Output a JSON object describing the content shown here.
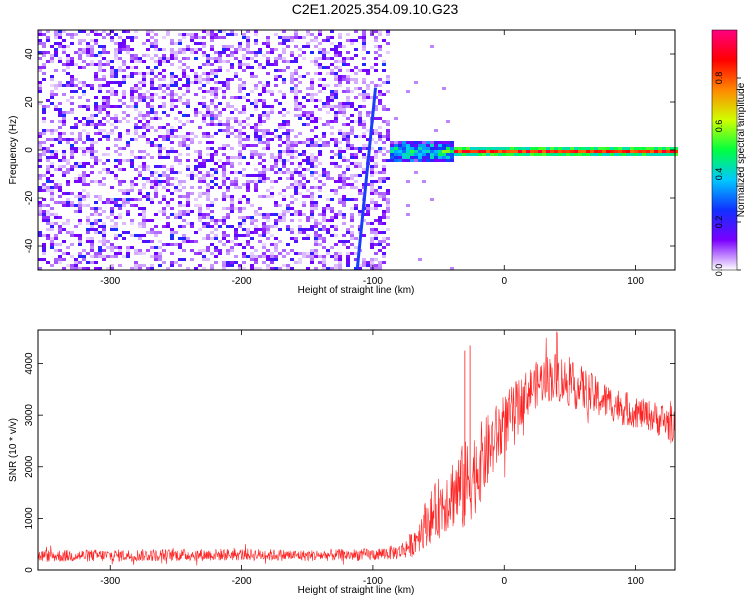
{
  "title": "C2E1.2025.354.09.10.G23",
  "chart_data": [
    {
      "type": "heatmap",
      "xlabel": "Height of straight line (km)",
      "ylabel": "Frequency (Hz)",
      "xlim": [
        -355,
        130
      ],
      "ylim": [
        -50,
        50
      ],
      "xticks": [
        -300,
        -200,
        -100,
        0,
        100
      ],
      "yticks": [
        -40,
        -20,
        0,
        20,
        40
      ],
      "colorbar": {
        "label": "Normalized spectral amplitude",
        "range": [
          0,
          1
        ],
        "ticks": [
          0.0,
          0.2,
          0.4,
          0.6,
          0.8
        ],
        "colors": [
          "#ffffff",
          "#7a00ff",
          "#1030ff",
          "#00c8ff",
          "#00ff40",
          "#d0ff00",
          "#ff8800",
          "#ff0000",
          "#ff0080"
        ]
      },
      "regions": [
        {
          "x_range": [
            -355,
            -90
          ],
          "description_amplitude": 0.1,
          "frequency_spread": [
            -50,
            50
          ]
        },
        {
          "x_range": [
            -90,
            -40
          ],
          "amplitude": 0.45,
          "frequency_spread": [
            -4,
            4
          ]
        },
        {
          "x_range": [
            -40,
            130
          ],
          "amplitude": 0.85,
          "frequency_spread": [
            -2,
            2
          ]
        }
      ],
      "streak": {
        "x_start": -112,
        "y_start": -50,
        "x_end": -98,
        "y_end": 26,
        "amplitude": 0.35
      }
    },
    {
      "type": "line",
      "xlabel": "Height of straight line (km)",
      "ylabel": "SNR (10 * v/v)",
      "xlim": [
        -355,
        130
      ],
      "ylim": [
        0,
        4650
      ],
      "xticks": [
        -300,
        -200,
        -100,
        0,
        100
      ],
      "yticks": [
        0,
        1000,
        2000,
        3000,
        4000
      ],
      "color": "#ff0000",
      "envelope": {
        "x": [
          -355,
          -300,
          -250,
          -200,
          -150,
          -100,
          -80,
          -70,
          -60,
          -50,
          -40,
          -30,
          -20,
          -10,
          0,
          10,
          20,
          30,
          40,
          50,
          60,
          70,
          80,
          90,
          100,
          110,
          120,
          130
        ],
        "mean": [
          270,
          280,
          290,
          300,
          280,
          300,
          350,
          500,
          900,
          1200,
          1500,
          1600,
          2000,
          2400,
          2800,
          3200,
          3500,
          3700,
          3750,
          3600,
          3500,
          3350,
          3250,
          3150,
          3050,
          3000,
          2900,
          2800
        ],
        "spread": [
          120,
          120,
          120,
          120,
          110,
          120,
          150,
          250,
          450,
          600,
          700,
          900,
          800,
          700,
          600,
          500,
          450,
          450,
          500,
          450,
          450,
          400,
          350,
          350,
          300,
          300,
          350,
          400
        ]
      },
      "spikes": [
        {
          "x": -26,
          "y": 4350
        },
        {
          "x": -30,
          "y": 4250
        },
        {
          "x": 40,
          "y": 4620
        }
      ]
    }
  ]
}
